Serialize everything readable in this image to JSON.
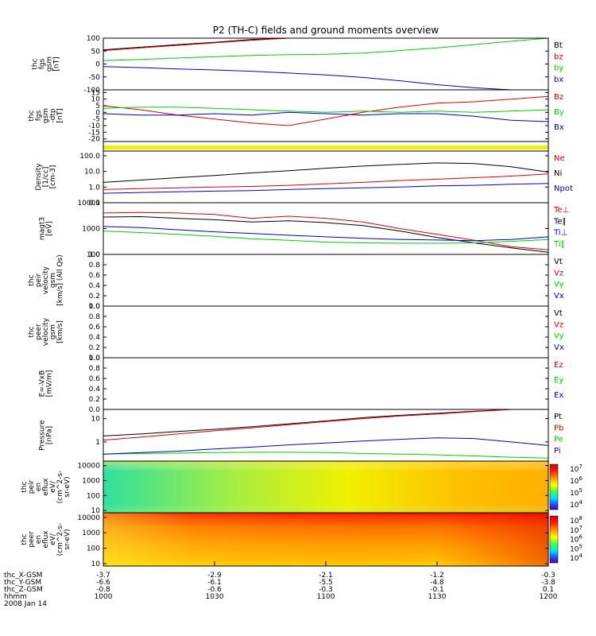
{
  "title": "P2 (TH-C) fields and ground moments overview",
  "colors": {
    "black": "#000000",
    "red": "#e00000",
    "green": "#00d000",
    "blue": "#0000cc",
    "yellow": "#f2f000"
  },
  "panels": [
    {
      "ylabel": [
        "thc",
        "fgs",
        "gsm",
        "[nT]"
      ],
      "ticks": [
        "100",
        "50",
        "0",
        "-50",
        "-100"
      ],
      "ylim": [
        -100,
        100
      ],
      "scale": "linear",
      "legend": [
        {
          "t": "Bt",
          "c": "black"
        },
        {
          "t": "bz",
          "c": "red"
        },
        {
          "t": "by",
          "c": "green"
        },
        {
          "t": "bx",
          "c": "blue"
        }
      ]
    },
    {
      "ylabel": [
        "thc",
        "fgs",
        "gsm",
        "-dtp",
        "[nT]"
      ],
      "ticks": [
        "15",
        "10",
        "5",
        "0",
        "-5",
        "-10",
        "-15",
        "-20"
      ],
      "ylim": [
        -22,
        17
      ],
      "scale": "linear",
      "legend": [
        {
          "t": "Bz",
          "c": "red"
        },
        {
          "t": "By",
          "c": "green"
        },
        {
          "t": "Bx",
          "c": "blue"
        }
      ]
    },
    {
      "ylabel": [],
      "ticks": [],
      "ylim": [
        0,
        1
      ],
      "scale": "linear",
      "legend": []
    },
    {
      "ylabel": [
        "Density",
        "[1/cc]",
        "[cm-3]"
      ],
      "ticks": [
        "100.0",
        "10.0",
        "1.0",
        "0.1"
      ],
      "ylim": [
        0.1,
        200
      ],
      "scale": "log",
      "legend": [
        {
          "t": "Ne",
          "c": "red"
        },
        {
          "t": "Ni",
          "c": "black"
        },
        {
          "t": "Npot",
          "c": "blue"
        }
      ]
    },
    {
      "ylabel": [
        "magt3",
        "[eV]"
      ],
      "ticks": [
        "10000",
        "1000",
        "100"
      ],
      "ylim": [
        100,
        10000
      ],
      "scale": "log",
      "legend": [
        {
          "t": "Te⊥",
          "c": "red"
        },
        {
          "t": "Te∥",
          "c": "black"
        },
        {
          "t": "Ti⊥",
          "c": "blue"
        },
        {
          "t": "Ti∥",
          "c": "green"
        }
      ]
    },
    {
      "ylabel": [
        "thc",
        "peir",
        "velocity",
        "gsm",
        "[km/s] (All Qs)"
      ],
      "ticks": [
        "1.0",
        "0.8",
        "0.6",
        "0.4",
        "0.2",
        "0.0"
      ],
      "ylim": [
        0,
        1
      ],
      "scale": "linear",
      "legend": [
        {
          "t": "Vt",
          "c": "black"
        },
        {
          "t": "Vz",
          "c": "red"
        },
        {
          "t": "Vy",
          "c": "green"
        },
        {
          "t": "Vx",
          "c": "blue"
        }
      ]
    },
    {
      "ylabel": [
        "thc",
        "peer",
        "velocity",
        "gsm",
        "[km/s]"
      ],
      "ticks": [
        "1.0",
        "0.8",
        "0.6",
        "0.4",
        "0.2",
        "0.0"
      ],
      "ylim": [
        0,
        1
      ],
      "scale": "linear",
      "legend": [
        {
          "t": "Vt",
          "c": "black"
        },
        {
          "t": "Vz",
          "c": "red"
        },
        {
          "t": "Vy",
          "c": "green"
        },
        {
          "t": "Vx",
          "c": "blue"
        }
      ]
    },
    {
      "ylabel": [
        "E=-VxB",
        "[mV/m]"
      ],
      "ticks": [
        "1.0",
        "0.8",
        "0.6",
        "0.4",
        "0.2",
        "0.0"
      ],
      "ylim": [
        0,
        1
      ],
      "scale": "linear",
      "legend": [
        {
          "t": "Ez",
          "c": "red"
        },
        {
          "t": "Ey",
          "c": "green"
        },
        {
          "t": "Ex",
          "c": "blue"
        }
      ]
    },
    {
      "ylabel": [
        "Pressure",
        "[nPa]"
      ],
      "ticks": [
        "10",
        "1"
      ],
      "ylim": [
        0.15,
        25
      ],
      "scale": "log",
      "legend": [
        {
          "t": "Pt",
          "c": "black"
        },
        {
          "t": "Pb",
          "c": "red"
        },
        {
          "t": "Pe",
          "c": "green"
        },
        {
          "t": "Pi",
          "c": "blue"
        }
      ]
    },
    {
      "ylabel": [
        "thc",
        "peir",
        "en",
        "eflux",
        "eV/",
        "(cm^2-s-",
        "sr-eV)"
      ],
      "ticks": [
        "10000",
        "1000",
        "100",
        "10"
      ],
      "ylim": [
        7,
        20000
      ],
      "scale": "log",
      "colorbar": [
        "10^7",
        "10^6",
        "10^5",
        "10^4"
      ],
      "legend": []
    },
    {
      "ylabel": [
        "thc",
        "peer",
        "en",
        "eflux",
        "eV/",
        "(cm^2-s-",
        "sr-eV)"
      ],
      "ticks": [
        "10000",
        "1000",
        "100",
        "10"
      ],
      "ylim": [
        7,
        20000
      ],
      "scale": "log",
      "colorbar": [
        "10^8",
        "10^7",
        "10^6",
        "10^5",
        "10^4"
      ],
      "legend": []
    }
  ],
  "footer": {
    "rows": [
      {
        "label": "thc_X-GSM",
        "values": [
          "-3.7",
          "-2.9",
          "-2.1",
          "-1.2",
          "-0.3"
        ]
      },
      {
        "label": "thc_Y-GSM",
        "values": [
          "-6.6",
          "-6.1",
          "-5.5",
          "-4.8",
          "-3.8"
        ]
      },
      {
        "label": "thc_Z-GSM",
        "values": [
          "-0.8",
          "-0.6",
          "-0.3",
          "-0.1",
          "0.1"
        ]
      },
      {
        "label": "hhmm",
        "values": [
          "1000",
          "1030",
          "1100",
          "1130",
          "1200"
        ]
      }
    ],
    "date": "2008 Jan 14"
  },
  "chart_data": {
    "type": "line",
    "x": [
      1000,
      1010,
      1020,
      1030,
      1040,
      1050,
      1100,
      1110,
      1120,
      1130,
      1140,
      1150,
      1200
    ],
    "xlabel": "hhmm",
    "panels": [
      {
        "series": [
          {
            "name": "Bt",
            "values": [
              55,
              65,
              75,
              84,
              95,
              100,
              null,
              null,
              null,
              null,
              null,
              null,
              null
            ]
          },
          {
            "name": "bz",
            "values": [
              52,
              62,
              72,
              82,
              92,
              100,
              null,
              null,
              null,
              null,
              null,
              null,
              null
            ]
          },
          {
            "name": "by",
            "values": [
              13,
              18,
              23,
              28,
              33,
              36,
              38,
              42,
              52,
              62,
              75,
              88,
              100
            ]
          },
          {
            "name": "bx",
            "values": [
              -10,
              -14,
              -19,
              -23,
              -28,
              -35,
              -42,
              -52,
              -65,
              -80,
              -92,
              -100,
              null
            ]
          }
        ]
      },
      {
        "series": [
          {
            "name": "Bz",
            "values": [
              5,
              2,
              -2,
              -5,
              -8,
              -10,
              -5,
              0,
              4,
              7,
              8,
              10,
              12
            ]
          },
          {
            "name": "By",
            "values": [
              3,
              4,
              4,
              3,
              2,
              1,
              0,
              1,
              0,
              1,
              0,
              1,
              2
            ]
          },
          {
            "name": "Bx",
            "values": [
              -1,
              -2,
              -2,
              -1,
              -2,
              0,
              -1,
              -2,
              -1,
              -1,
              -3,
              -6,
              -7
            ]
          }
        ]
      },
      {
        "series": []
      },
      {
        "series": [
          {
            "name": "Ne",
            "values": [
              0.7,
              0.8,
              0.9,
              1.0,
              1.1,
              1.3,
              1.6,
              2.0,
              2.6,
              3.2,
              4,
              5,
              7
            ]
          },
          {
            "name": "Ni",
            "values": [
              2,
              2.8,
              4,
              5.5,
              8,
              11,
              16,
              22,
              28,
              35,
              32,
              20,
              9
            ]
          },
          {
            "name": "Npot",
            "values": [
              0.4,
              0.45,
              0.5,
              0.55,
              0.6,
              0.7,
              0.8,
              0.9,
              1.0,
              1.2,
              1.3,
              1.5,
              1.7
            ]
          }
        ]
      },
      {
        "series": [
          {
            "name": "Te⊥",
            "values": [
              4000,
              4200,
              4000,
              3500,
              2500,
              3000,
              2500,
              1800,
              1000,
              600,
              350,
              200,
              150
            ]
          },
          {
            "name": "Te∥",
            "values": [
              2800,
              2900,
              2500,
              2200,
              1800,
              2000,
              1700,
              1300,
              800,
              450,
              280,
              180,
              120
            ]
          },
          {
            "name": "Ti⊥",
            "values": [
              1200,
              1100,
              900,
              750,
              650,
              550,
              480,
              420,
              380,
              360,
              340,
              380,
              480
            ]
          },
          {
            "name": "Ti∥",
            "values": [
              800,
              700,
              600,
              500,
              400,
              350,
              300,
              280,
              270,
              270,
              280,
              320,
              380
            ]
          }
        ]
      },
      {
        "series": []
      },
      {
        "series": []
      },
      {
        "series": []
      },
      {
        "series": [
          {
            "name": "Pt",
            "values": [
              1.8,
              2.2,
              2.8,
              3.5,
              4.5,
              6,
              8,
              11,
              14,
              17,
              21,
              25,
              null
            ]
          },
          {
            "name": "Pb",
            "values": [
              1.2,
              1.6,
              2.2,
              3,
              4,
              5.5,
              7.5,
              10,
              13,
              16,
              20,
              25,
              null
            ]
          },
          {
            "name": "Pe",
            "values": [
              0.3,
              0.32,
              0.33,
              0.35,
              0.36,
              0.36,
              0.35,
              0.32,
              0.3,
              0.28,
              0.25,
              0.22,
              0.2
            ]
          },
          {
            "name": "Pi",
            "values": [
              0.3,
              0.35,
              0.4,
              0.5,
              0.6,
              0.75,
              0.9,
              1.1,
              1.3,
              1.5,
              1.4,
              1.0,
              0.7
            ]
          }
        ]
      },
      {
        "series": []
      },
      {
        "series": []
      }
    ]
  }
}
